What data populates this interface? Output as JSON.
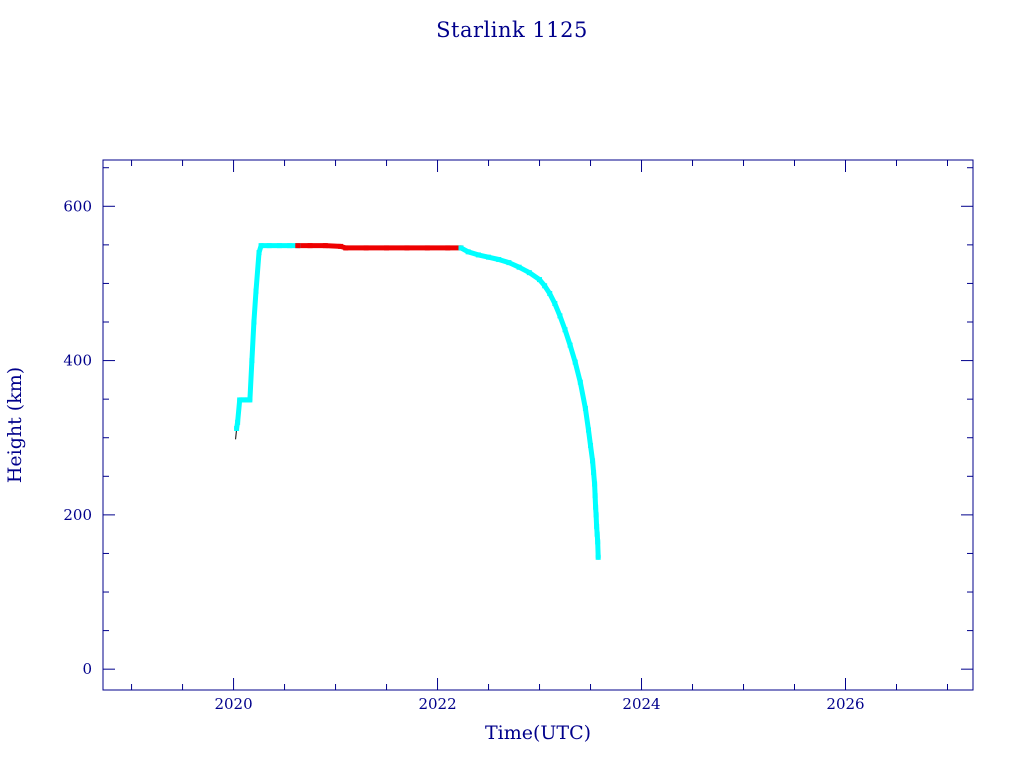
{
  "chart_data": {
    "type": "scatter",
    "title": "Starlink 1125",
    "xlabel": "Time(UTC)",
    "ylabel": "Height (km)",
    "xlim": [
      2018.72,
      2027.25
    ],
    "ylim": [
      -27,
      660
    ],
    "x_ticks": [
      2020,
      2022,
      2024,
      2026
    ],
    "y_ticks": [
      0,
      200,
      400,
      600
    ],
    "grid": false,
    "colors": {
      "axis": "#00008b",
      "primary_series": "#00ffff",
      "highlight_series": "#ee0000",
      "trace_line": "#000000",
      "background": "#ffffff"
    },
    "series": [
      {
        "color": "#00ffff",
        "x": [
          2020.03,
          2020.04,
          2020.06,
          2020.1,
          2020.14,
          2020.16,
          2020.18,
          2020.2,
          2020.22,
          2020.25,
          2020.27,
          2020.35,
          2020.45,
          2020.55,
          2020.63
        ],
        "y": [
          312,
          320,
          349,
          349,
          349,
          349,
          400,
          450,
          490,
          540,
          549,
          549,
          549,
          549,
          549
        ]
      },
      {
        "color": "#ee0000",
        "x": [
          2020.63,
          2020.75,
          2020.9,
          2021.05,
          2021.1,
          2021.3,
          2021.5,
          2021.7,
          2021.9,
          2022.1,
          2022.23
        ],
        "y": [
          549,
          549,
          549,
          548,
          546,
          546,
          546,
          546,
          546,
          546,
          546
        ]
      },
      {
        "color": "#00ffff",
        "x": [
          2022.23,
          2022.3,
          2022.4,
          2022.5,
          2022.6,
          2022.7,
          2022.8,
          2022.9,
          2023.0,
          2023.05,
          2023.1,
          2023.15,
          2023.2,
          2023.25,
          2023.3,
          2023.35,
          2023.4,
          2023.45,
          2023.48,
          2023.5,
          2023.52,
          2023.53,
          2023.54,
          2023.545,
          2023.55,
          2023.555,
          2023.56,
          2023.565,
          2023.57,
          2023.575
        ],
        "y": [
          546,
          541,
          537,
          534,
          531,
          527,
          521,
          514,
          505,
          497,
          487,
          474,
          458,
          440,
          420,
          398,
          372,
          338,
          310,
          290,
          270,
          255,
          240,
          225,
          210,
          200,
          185,
          175,
          165,
          145
        ]
      }
    ]
  }
}
